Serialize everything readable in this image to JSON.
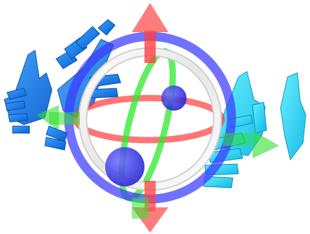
{
  "scene": {
    "colors": {
      "background": "#ffffff",
      "x_axis": "#ff3b3b",
      "y_axis": "#3a3aff",
      "z_axis": "#2ee82e",
      "view_ring": "#e8e8e8",
      "hand_left": "#1e90ff",
      "hand_right": "#1ee0ff"
    },
    "icons": {
      "handle_x": "arrow-x-icon",
      "handle_y": "arrow-y-icon",
      "handle_z": "arrow-z-icon"
    }
  }
}
